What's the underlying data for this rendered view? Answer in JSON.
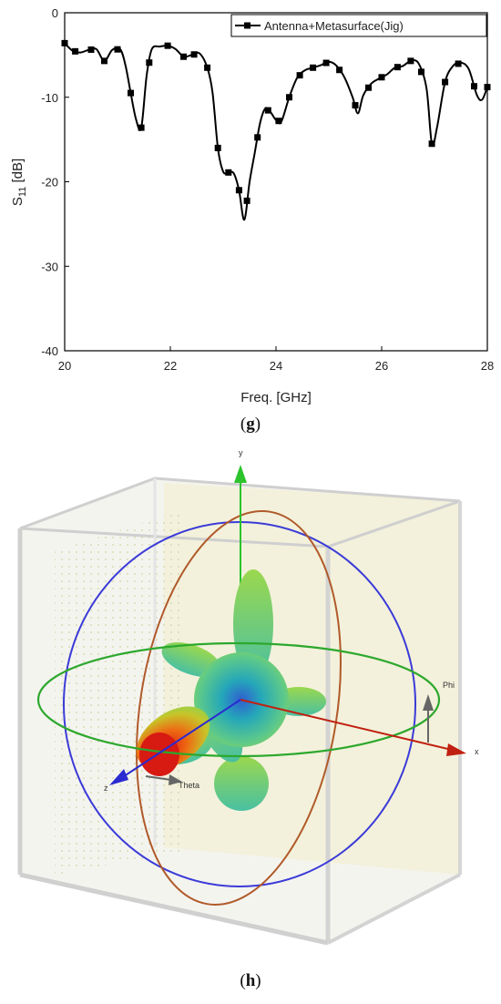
{
  "chart_data": {
    "type": "line",
    "xlabel": "Freq. [GHz]",
    "ylabel_main": "S",
    "ylabel_sub": "11",
    "ylabel_unit": " [dB]",
    "xlim": [
      20,
      28
    ],
    "ylim": [
      -40,
      0
    ],
    "xticks": [
      20,
      22,
      24,
      26,
      28
    ],
    "yticks": [
      0,
      -10,
      -20,
      -30,
      -40
    ],
    "grid": false,
    "legend_position": "top-right",
    "series": [
      {
        "name": "Antenna+Metasurface(Jig)",
        "color": "#000000",
        "marker": "square",
        "x": [
          20.0,
          20.15,
          20.3,
          20.45,
          20.6,
          20.75,
          20.9,
          21.05,
          21.15,
          21.25,
          21.35,
          21.45,
          21.55,
          21.65,
          21.8,
          21.95,
          22.1,
          22.25,
          22.4,
          22.55,
          22.7,
          22.8,
          22.9,
          23.0,
          23.1,
          23.2,
          23.3,
          23.4,
          23.5,
          23.6,
          23.7,
          23.8,
          23.9,
          24.0,
          24.1,
          24.25,
          24.4,
          24.55,
          24.7,
          24.85,
          25.0,
          25.15,
          25.3,
          25.45,
          25.55,
          25.65,
          25.8,
          25.95,
          26.1,
          26.25,
          26.4,
          26.55,
          26.7,
          26.85,
          26.95,
          27.05,
          27.2,
          27.35,
          27.5,
          27.65,
          27.8,
          27.9,
          28.0
        ],
        "y": [
          -3.6,
          -4.5,
          -4.7,
          -4.4,
          -4.3,
          -5.7,
          -4.4,
          -4.3,
          -6.2,
          -9.5,
          -12.6,
          -13.6,
          -7.5,
          -4.3,
          -4.0,
          -3.9,
          -4.3,
          -5.2,
          -5.0,
          -4.8,
          -6.5,
          -9.5,
          -16.0,
          -18.8,
          -18.9,
          -19.0,
          -21.0,
          -24.5,
          -20.0,
          -16.5,
          -13.0,
          -11.3,
          -11.8,
          -12.7,
          -12.9,
          -10.0,
          -7.7,
          -6.8,
          -6.5,
          -6.2,
          -5.8,
          -6.3,
          -7.7,
          -10.0,
          -11.9,
          -9.8,
          -8.4,
          -7.8,
          -7.3,
          -6.5,
          -6.3,
          -5.7,
          -6.0,
          -9.0,
          -15.5,
          -13.5,
          -8.2,
          -6.3,
          -5.9,
          -6.7,
          -9.7,
          -10.3,
          -8.8
        ]
      }
    ],
    "marker_x": [
      20.0,
      20.2,
      20.5,
      20.75,
      21.0,
      21.25,
      21.45,
      21.6,
      21.95,
      22.25,
      22.45,
      22.7,
      22.9,
      23.1,
      23.3,
      23.45,
      23.65,
      23.85,
      24.05,
      24.25,
      24.45,
      24.7,
      24.95,
      25.2,
      25.5,
      25.75,
      26.0,
      26.3,
      26.55,
      26.75,
      26.95,
      27.2,
      27.45,
      27.75,
      28.0
    ]
  },
  "figure_labels": {
    "g": "g",
    "h": "h"
  },
  "pattern_axes": {
    "x": "x",
    "y": "y",
    "z": "z",
    "phi": "Phi",
    "theta": "Theta"
  }
}
